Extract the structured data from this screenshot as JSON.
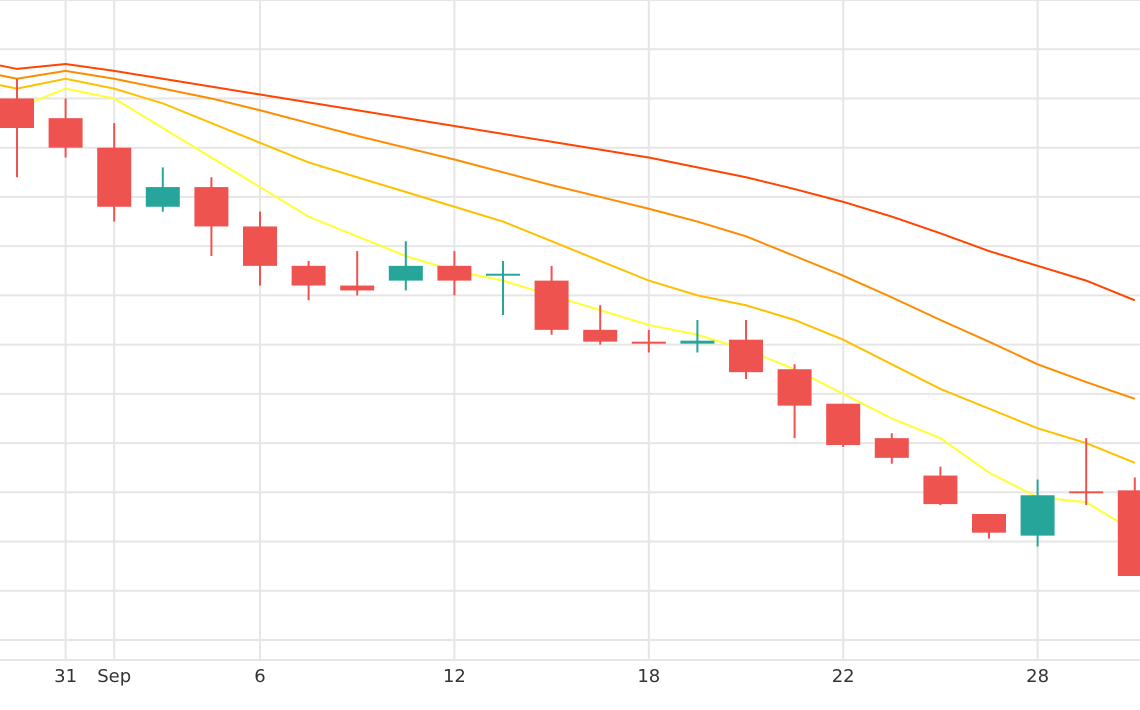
{
  "chart_data": {
    "type": "candlestick",
    "title": "",
    "xlabel": "",
    "ylabel": "",
    "grid": true,
    "x_tick_labels": [
      {
        "date": "2023-08-31",
        "label": "31"
      },
      {
        "date": "2023-09-01",
        "label": "Sep"
      },
      {
        "date": "2023-09-06",
        "label": "6"
      },
      {
        "date": "2023-09-12",
        "label": "12"
      },
      {
        "date": "2023-09-18",
        "label": "18"
      },
      {
        "date": "2023-09-22",
        "label": "22"
      },
      {
        "date": "2023-09-28",
        "label": "28"
      }
    ],
    "candles": [
      {
        "date": "2023-08-30",
        "open": 45,
        "high": 47,
        "low": 37,
        "close": 42
      },
      {
        "date": "2023-08-31",
        "open": 43,
        "high": 45,
        "low": 39,
        "close": 40
      },
      {
        "date": "2023-09-01",
        "open": 40,
        "high": 42.5,
        "low": 32.5,
        "close": 34
      },
      {
        "date": "2023-09-04",
        "open": 34,
        "high": 38,
        "low": 33.5,
        "close": 36
      },
      {
        "date": "2023-09-05",
        "open": 36,
        "high": 37,
        "low": 29,
        "close": 32
      },
      {
        "date": "2023-09-06",
        "open": 32,
        "high": 33.5,
        "low": 26,
        "close": 28
      },
      {
        "date": "2023-09-07",
        "open": 28,
        "high": 28.5,
        "low": 24.5,
        "close": 26
      },
      {
        "date": "2023-09-08",
        "open": 26,
        "high": 29.5,
        "low": 25,
        "close": 25.5
      },
      {
        "date": "2023-09-11",
        "open": 26.5,
        "high": 30.5,
        "low": 25.5,
        "close": 28
      },
      {
        "date": "2023-09-12",
        "open": 28,
        "high": 29.5,
        "low": 25,
        "close": 26.5
      },
      {
        "date": "2023-09-13",
        "open": 27,
        "high": 28.5,
        "low": 23,
        "close": 27.2
      },
      {
        "date": "2023-09-14",
        "open": 26.5,
        "high": 28,
        "low": 21,
        "close": 21.5
      },
      {
        "date": "2023-09-15",
        "open": 21.5,
        "high": 24,
        "low": 20,
        "close": 20.3
      },
      {
        "date": "2023-09-18",
        "open": 20.3,
        "high": 21.5,
        "low": 19.2,
        "close": 20.1
      },
      {
        "date": "2023-09-19",
        "open": 20.1,
        "high": 22.5,
        "low": 19.2,
        "close": 20.4
      },
      {
        "date": "2023-09-20",
        "open": 20.5,
        "high": 22.5,
        "low": 16.5,
        "close": 17.2
      },
      {
        "date": "2023-09-21",
        "open": 17.5,
        "high": 18,
        "low": 10.5,
        "close": 13.8
      },
      {
        "date": "2023-09-22",
        "open": 14,
        "high": 14,
        "low": 9.6,
        "close": 9.8
      },
      {
        "date": "2023-09-25",
        "open": 10.5,
        "high": 11,
        "low": 7.9,
        "close": 8.5
      },
      {
        "date": "2023-09-26",
        "open": 6.7,
        "high": 7.6,
        "low": 3.7,
        "close": 3.8
      },
      {
        "date": "2023-09-27",
        "open": 2.8,
        "high": 2.8,
        "low": 0.3,
        "close": 0.9
      },
      {
        "date": "2023-09-28",
        "open": 0.6,
        "high": 6.3,
        "low": -0.5,
        "close": 4.7
      },
      {
        "date": "2023-09-29",
        "open": 5.1,
        "high": 10.5,
        "low": 3.7,
        "close": 4.9
      },
      {
        "date": "2023-10-02",
        "open": 5.2,
        "high": 6.5,
        "low": -3.5,
        "close": -3.5
      }
    ],
    "moving_averages": [
      {
        "color": "#ffff33",
        "values": [
          44,
          46,
          45,
          42,
          39,
          36,
          33,
          31,
          29,
          27.5,
          26.5,
          25,
          23.5,
          22,
          21,
          19.5,
          17.5,
          15,
          12.5,
          10.5,
          7,
          4.5,
          4,
          1
        ]
      },
      {
        "color": "#ffc000",
        "values": [
          46,
          47,
          46,
          44.5,
          42.5,
          40.5,
          38.5,
          37,
          35.5,
          34,
          32.5,
          30.5,
          28.5,
          26.5,
          25,
          24,
          22.5,
          20.5,
          18,
          15.5,
          13.5,
          11.5,
          10,
          8
        ]
      },
      {
        "color": "#ff8c00",
        "values": [
          47,
          47.8,
          47,
          46,
          45,
          43.8,
          42.5,
          41.2,
          40,
          38.8,
          37.5,
          36.2,
          35,
          33.8,
          32.5,
          31,
          29,
          27,
          24.8,
          22.5,
          20.3,
          18,
          16.2,
          14.5
        ]
      },
      {
        "color": "#ff4500",
        "values": [
          48,
          48.5,
          47.8,
          47,
          46.2,
          45.4,
          44.6,
          43.8,
          43,
          42.2,
          41.4,
          40.6,
          39.8,
          39,
          38,
          37,
          35.8,
          34.5,
          33,
          31.3,
          29.5,
          28,
          26.5,
          24.5
        ]
      }
    ]
  }
}
